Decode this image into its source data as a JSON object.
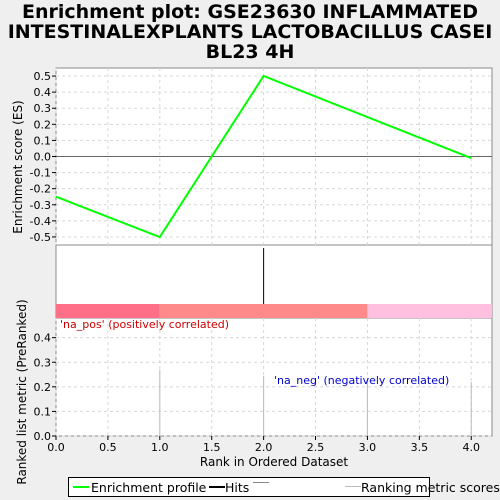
{
  "title_lines": [
    "Enrichment plot: GSE23630 INFLAMMATED",
    "INTESTINALEXPLANTS LACTOBACILLUS CASEI",
    "BL23 4H"
  ],
  "colors": {
    "profile": "#00ff00",
    "hits": "#000000",
    "metric": "#bbbbbb",
    "pos": "#ff7890",
    "neg": "#ffc0e0",
    "grid": "#d8d8d8"
  },
  "chart_data": [
    {
      "type": "line",
      "name": "enrichment",
      "ylabel": "Enrichment score (ES)",
      "ylim": [
        -0.55,
        0.55
      ],
      "y_ticks": [
        0.5,
        0.4,
        0.3,
        0.2,
        0.1,
        0.0,
        -0.1,
        -0.2,
        -0.3,
        -0.4,
        -0.5
      ],
      "y_tick_labels": [
        "0.5",
        "0.4",
        "0.3",
        "0.2",
        "0.1",
        "0.0",
        "-0.1",
        "-0.2",
        "-0.3",
        "-0.4",
        "-0.5"
      ],
      "series": [
        {
          "name": "Enrichment profile",
          "x": [
            0,
            1,
            2,
            4
          ],
          "y": [
            -0.25,
            -0.5,
            0.5,
            -0.01
          ]
        }
      ],
      "grid": true
    },
    {
      "type": "bar",
      "name": "hits",
      "hits": [
        2
      ]
    },
    {
      "type": "bar",
      "name": "ranked_list",
      "xlabel": "Rank in Ordered Dataset",
      "ylabel": "Ranked list metric (PreRanked)",
      "xlim": [
        0,
        4.2
      ],
      "ylim": [
        0,
        0.48
      ],
      "x_ticks": [
        0,
        0.5,
        1,
        1.5,
        2,
        2.5,
        3,
        3.5,
        4
      ],
      "x_tick_labels": [
        "0.0",
        "0.5",
        "1.0",
        "1.5",
        "2.0",
        "2.5",
        "3.0",
        "3.5",
        "4.0"
      ],
      "y_ticks": [
        0,
        0.1,
        0.2,
        0.3,
        0.4
      ],
      "y_tick_labels": [
        "0.0",
        "0.1",
        "0.2",
        "0.3",
        "0.4"
      ],
      "x": [
        1,
        2,
        3,
        4
      ],
      "values": [
        0.27,
        0.245,
        0.235,
        0.22
      ],
      "grid": true,
      "annotations": {
        "pos": "'na_pos' (positively correlated)",
        "neg": "'na_neg' (negatively correlated)"
      }
    }
  ],
  "legend": {
    "profile": "Enrichment profile",
    "hits": "Hits",
    "metric": "Ranking metric scores"
  }
}
